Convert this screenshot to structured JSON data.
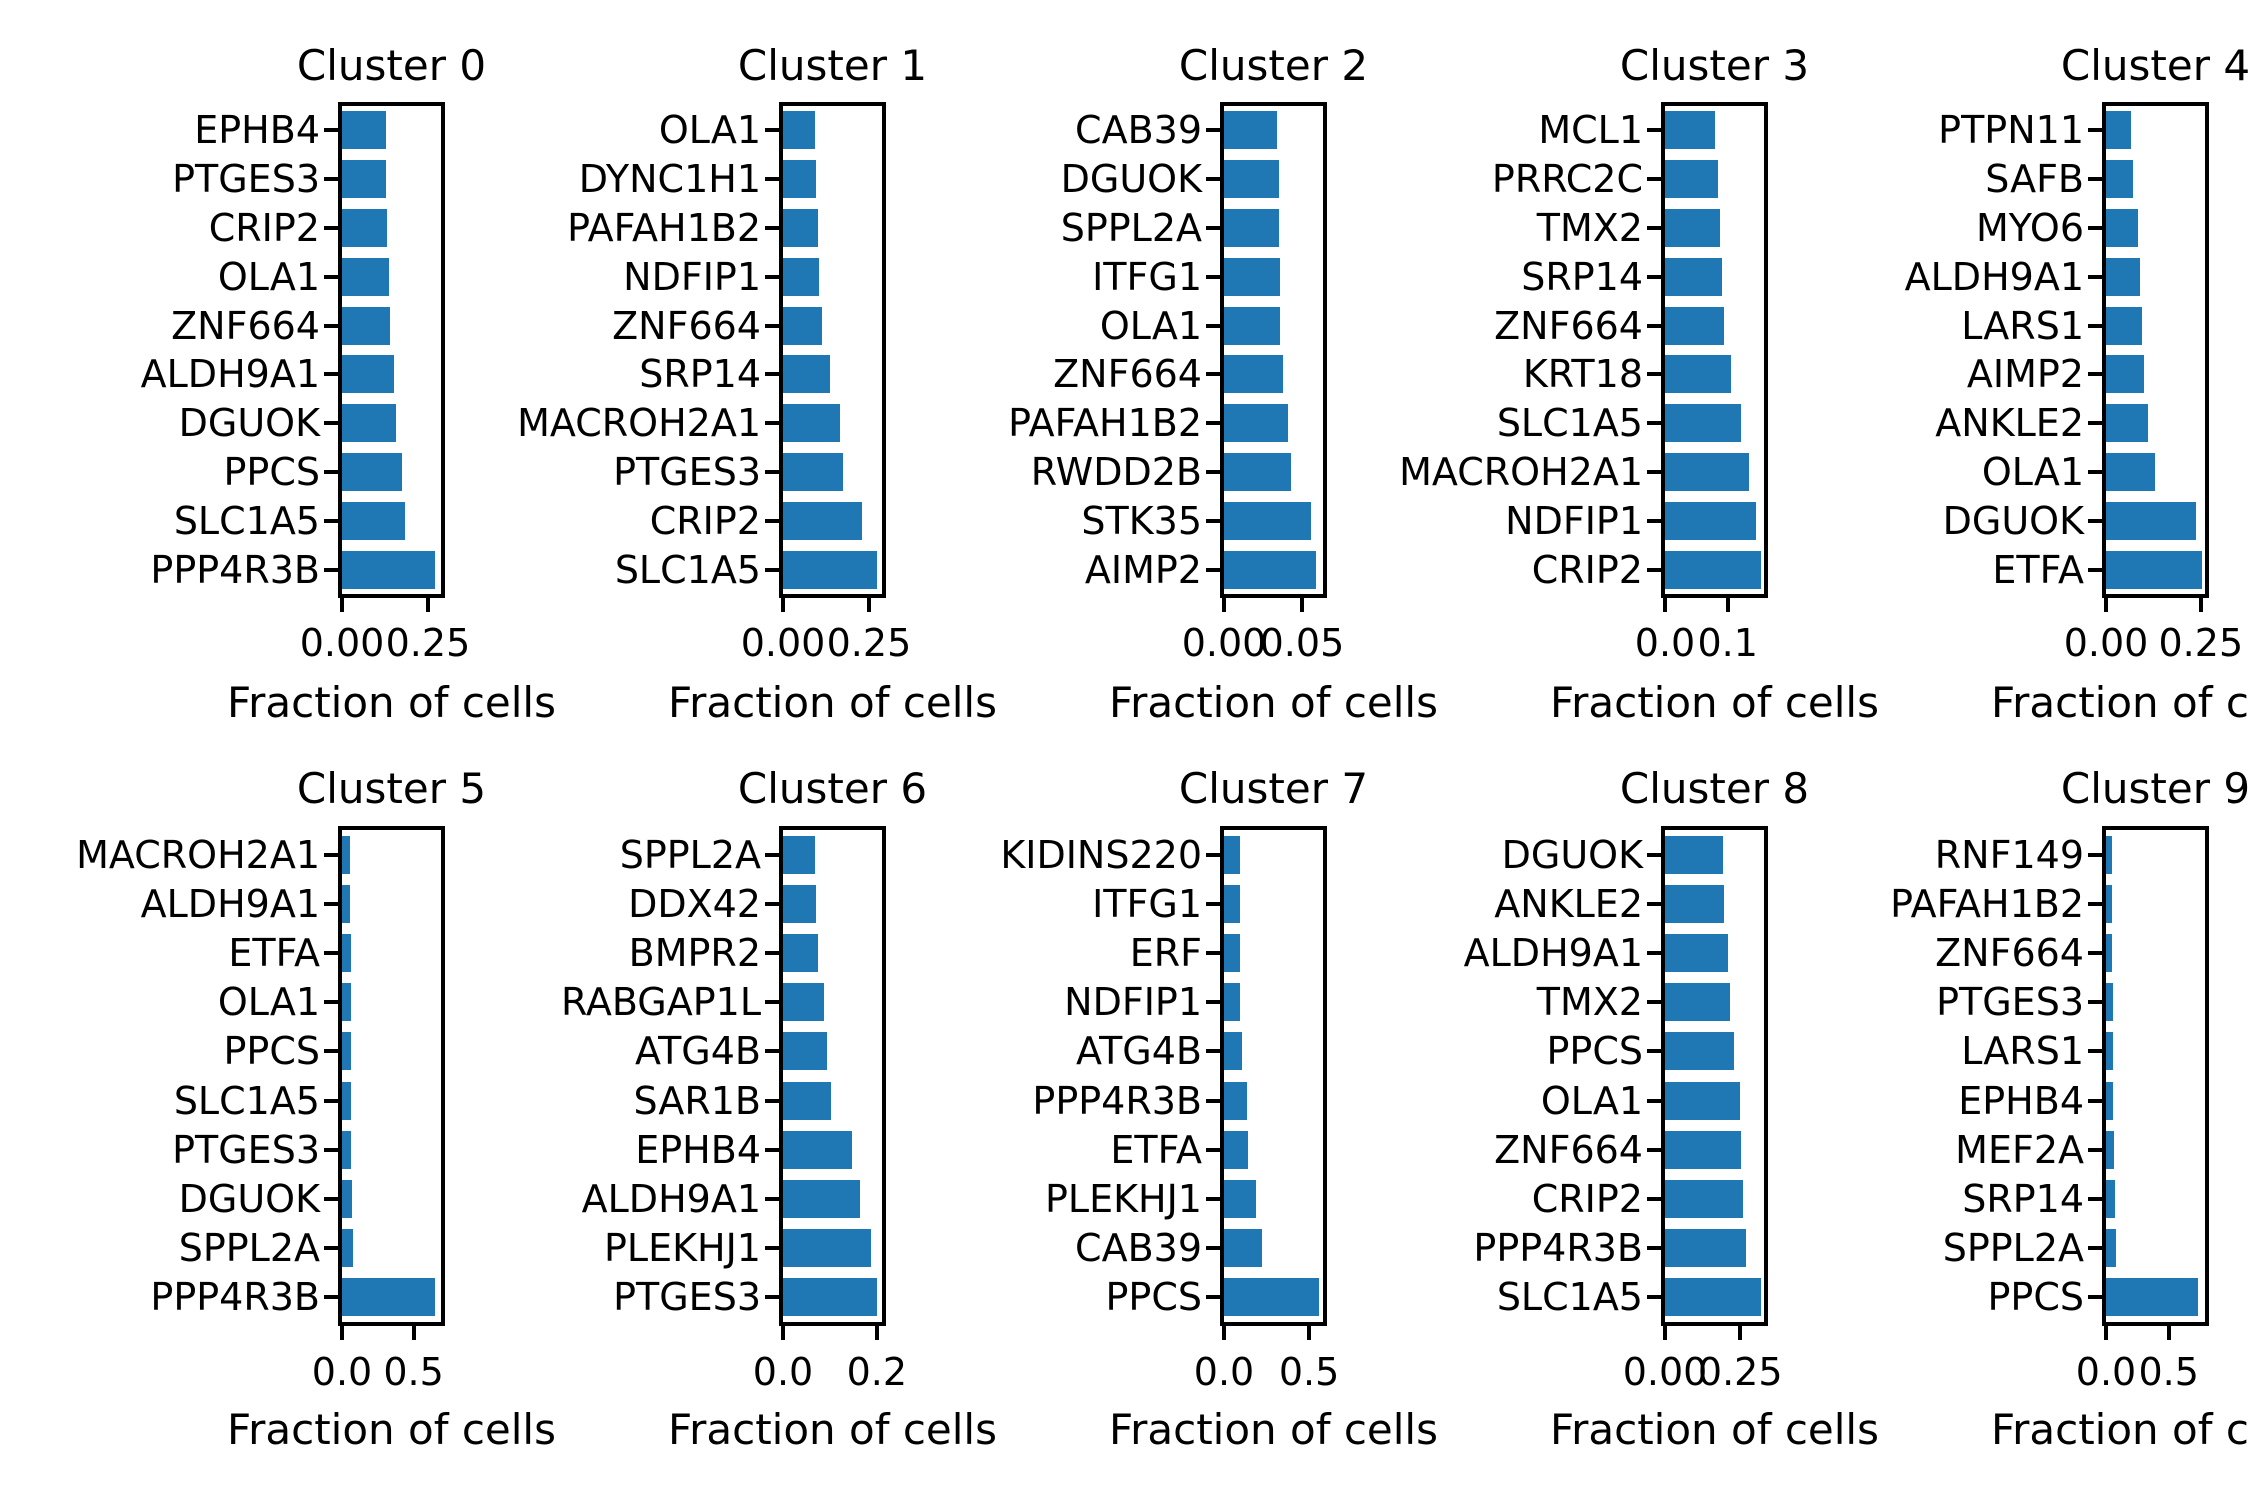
{
  "figure": {
    "background": "#ffffff",
    "bar_color": "#1f77b4",
    "spine_color": "#000000",
    "text_color": "#000000",
    "rows": 2,
    "cols": 5,
    "xlabel": "Fraction of cells"
  },
  "chart_data": [
    {
      "type": "bar",
      "orientation": "horizontal",
      "grid": false,
      "legend": false,
      "title": "Cluster 0",
      "xlabel": "Fraction of cells",
      "categories": [
        "EPHB4",
        "PTGES3",
        "CRIP2",
        "OLA1",
        "ZNF664",
        "ALDH9A1",
        "DGUOK",
        "PPCS",
        "SLC1A5",
        "PPP4R3B"
      ],
      "values": [
        0.127,
        0.127,
        0.132,
        0.137,
        0.141,
        0.151,
        0.158,
        0.175,
        0.182,
        0.271
      ],
      "xlim": [
        0,
        0.288
      ],
      "xticks": [
        {
          "value": 0.0,
          "label": "0.00"
        },
        {
          "value": 0.25,
          "label": "0.25"
        }
      ]
    },
    {
      "type": "bar",
      "orientation": "horizontal",
      "grid": false,
      "legend": false,
      "title": "Cluster 1",
      "xlabel": "Fraction of cells",
      "categories": [
        "OLA1",
        "DYNC1H1",
        "PAFAH1B2",
        "NDFIP1",
        "ZNF664",
        "SRP14",
        "MACROH2A1",
        "PTGES3",
        "CRIP2",
        "SLC1A5"
      ],
      "values": [
        0.092,
        0.097,
        0.102,
        0.104,
        0.113,
        0.137,
        0.167,
        0.175,
        0.231,
        0.274
      ],
      "xlim": [
        0,
        0.288
      ],
      "xticks": [
        {
          "value": 0.0,
          "label": "0.00"
        },
        {
          "value": 0.25,
          "label": "0.25"
        }
      ]
    },
    {
      "type": "bar",
      "orientation": "horizontal",
      "grid": false,
      "legend": false,
      "title": "Cluster 2",
      "xlabel": "Fraction of cells",
      "categories": [
        "CAB39",
        "DGUOK",
        "SPPL2A",
        "ITFG1",
        "OLA1",
        "ZNF664",
        "PAFAH1B2",
        "RWDD2B",
        "STK35",
        "AIMP2"
      ],
      "values": [
        0.034,
        0.035,
        0.035,
        0.036,
        0.036,
        0.038,
        0.041,
        0.043,
        0.056,
        0.059
      ],
      "xlim": [
        0,
        0.0635
      ],
      "xticks": [
        {
          "value": 0.0,
          "label": "0.00"
        },
        {
          "value": 0.05,
          "label": "0.05"
        }
      ]
    },
    {
      "type": "bar",
      "orientation": "horizontal",
      "grid": false,
      "legend": false,
      "title": "Cluster 3",
      "xlabel": "Fraction of cells",
      "categories": [
        "MCL1",
        "PRRC2C",
        "TMX2",
        "SRP14",
        "ZNF664",
        "KRT18",
        "SLC1A5",
        "MACROH2A1",
        "NDFIP1",
        "CRIP2"
      ],
      "values": [
        0.079,
        0.085,
        0.087,
        0.091,
        0.094,
        0.106,
        0.121,
        0.134,
        0.146,
        0.154
      ],
      "xlim": [
        0,
        0.158
      ],
      "xticks": [
        {
          "value": 0.0,
          "label": "0.0"
        },
        {
          "value": 0.1,
          "label": "0.1"
        }
      ]
    },
    {
      "type": "bar",
      "orientation": "horizontal",
      "grid": false,
      "legend": false,
      "title": "Cluster 4",
      "xlabel": "Fraction of cells",
      "categories": [
        "PTPN11",
        "SAFB",
        "MYO6",
        "ALDH9A1",
        "LARS1",
        "AIMP2",
        "ANKLE2",
        "OLA1",
        "DGUOK",
        "ETFA"
      ],
      "values": [
        0.067,
        0.071,
        0.085,
        0.089,
        0.096,
        0.101,
        0.11,
        0.129,
        0.238,
        0.254
      ],
      "xlim": [
        0,
        0.261
      ],
      "xticks": [
        {
          "value": 0.0,
          "label": "0.00"
        },
        {
          "value": 0.25,
          "label": "0.25"
        }
      ]
    },
    {
      "type": "bar",
      "orientation": "horizontal",
      "grid": false,
      "legend": false,
      "title": "Cluster 5",
      "xlabel": "Fraction of cells",
      "categories": [
        "MACROH2A1",
        "ALDH9A1",
        "ETFA",
        "OLA1",
        "PPCS",
        "SLC1A5",
        "PTGES3",
        "DGUOK",
        "SPPL2A",
        "PPP4R3B"
      ],
      "values": [
        0.056,
        0.056,
        0.061,
        0.063,
        0.063,
        0.063,
        0.063,
        0.068,
        0.074,
        0.653
      ],
      "xlim": [
        0,
        0.692
      ],
      "xticks": [
        {
          "value": 0.0,
          "label": "0.0"
        },
        {
          "value": 0.5,
          "label": "0.5"
        }
      ]
    },
    {
      "type": "bar",
      "orientation": "horizontal",
      "grid": false,
      "legend": false,
      "title": "Cluster 6",
      "xlabel": "Fraction of cells",
      "categories": [
        "SPPL2A",
        "DDX42",
        "BMPR2",
        "RABGAP1L",
        "ATG4B",
        "SAR1B",
        "EPHB4",
        "ALDH9A1",
        "PLEKHJ1",
        "PTGES3"
      ],
      "values": [
        0.069,
        0.07,
        0.075,
        0.088,
        0.094,
        0.103,
        0.148,
        0.165,
        0.188,
        0.2
      ],
      "xlim": [
        0,
        0.211
      ],
      "xticks": [
        {
          "value": 0.0,
          "label": "0.0"
        },
        {
          "value": 0.2,
          "label": "0.2"
        }
      ]
    },
    {
      "type": "bar",
      "orientation": "horizontal",
      "grid": false,
      "legend": false,
      "title": "Cluster 7",
      "xlabel": "Fraction of cells",
      "categories": [
        "KIDINS220",
        "ITFG1",
        "ERF",
        "NDFIP1",
        "ATG4B",
        "PPP4R3B",
        "ETFA",
        "PLEKHJ1",
        "CAB39",
        "PPCS"
      ],
      "values": [
        0.094,
        0.094,
        0.094,
        0.095,
        0.108,
        0.133,
        0.141,
        0.188,
        0.224,
        0.558
      ],
      "xlim": [
        0,
        0.582
      ],
      "xticks": [
        {
          "value": 0.0,
          "label": "0.0"
        },
        {
          "value": 0.5,
          "label": "0.5"
        }
      ]
    },
    {
      "type": "bar",
      "orientation": "horizontal",
      "grid": false,
      "legend": false,
      "title": "Cluster 8",
      "xlabel": "Fraction of cells",
      "categories": [
        "DGUOK",
        "ANKLE2",
        "ALDH9A1",
        "TMX2",
        "PPCS",
        "OLA1",
        "ZNF664",
        "CRIP2",
        "PPP4R3B",
        "SLC1A5"
      ],
      "values": [
        0.194,
        0.197,
        0.208,
        0.217,
        0.23,
        0.25,
        0.252,
        0.258,
        0.269,
        0.318
      ],
      "xlim": [
        0,
        0.329
      ],
      "xticks": [
        {
          "value": 0.0,
          "label": "0.00"
        },
        {
          "value": 0.25,
          "label": "0.25"
        }
      ]
    },
    {
      "type": "bar",
      "orientation": "horizontal",
      "grid": false,
      "legend": false,
      "title": "Cluster 9",
      "xlabel": "Fraction of cells",
      "categories": [
        "RNF149",
        "PAFAH1B2",
        "ZNF664",
        "PTGES3",
        "LARS1",
        "EPHB4",
        "MEF2A",
        "SRP14",
        "SPPL2A",
        "PPCS"
      ],
      "values": [
        0.047,
        0.047,
        0.047,
        0.052,
        0.057,
        0.057,
        0.06,
        0.07,
        0.078,
        0.733
      ],
      "xlim": [
        0,
        0.79
      ],
      "xticks": [
        {
          "value": 0.0,
          "label": "0.0"
        },
        {
          "value": 0.5,
          "label": "0.5"
        }
      ]
    }
  ]
}
